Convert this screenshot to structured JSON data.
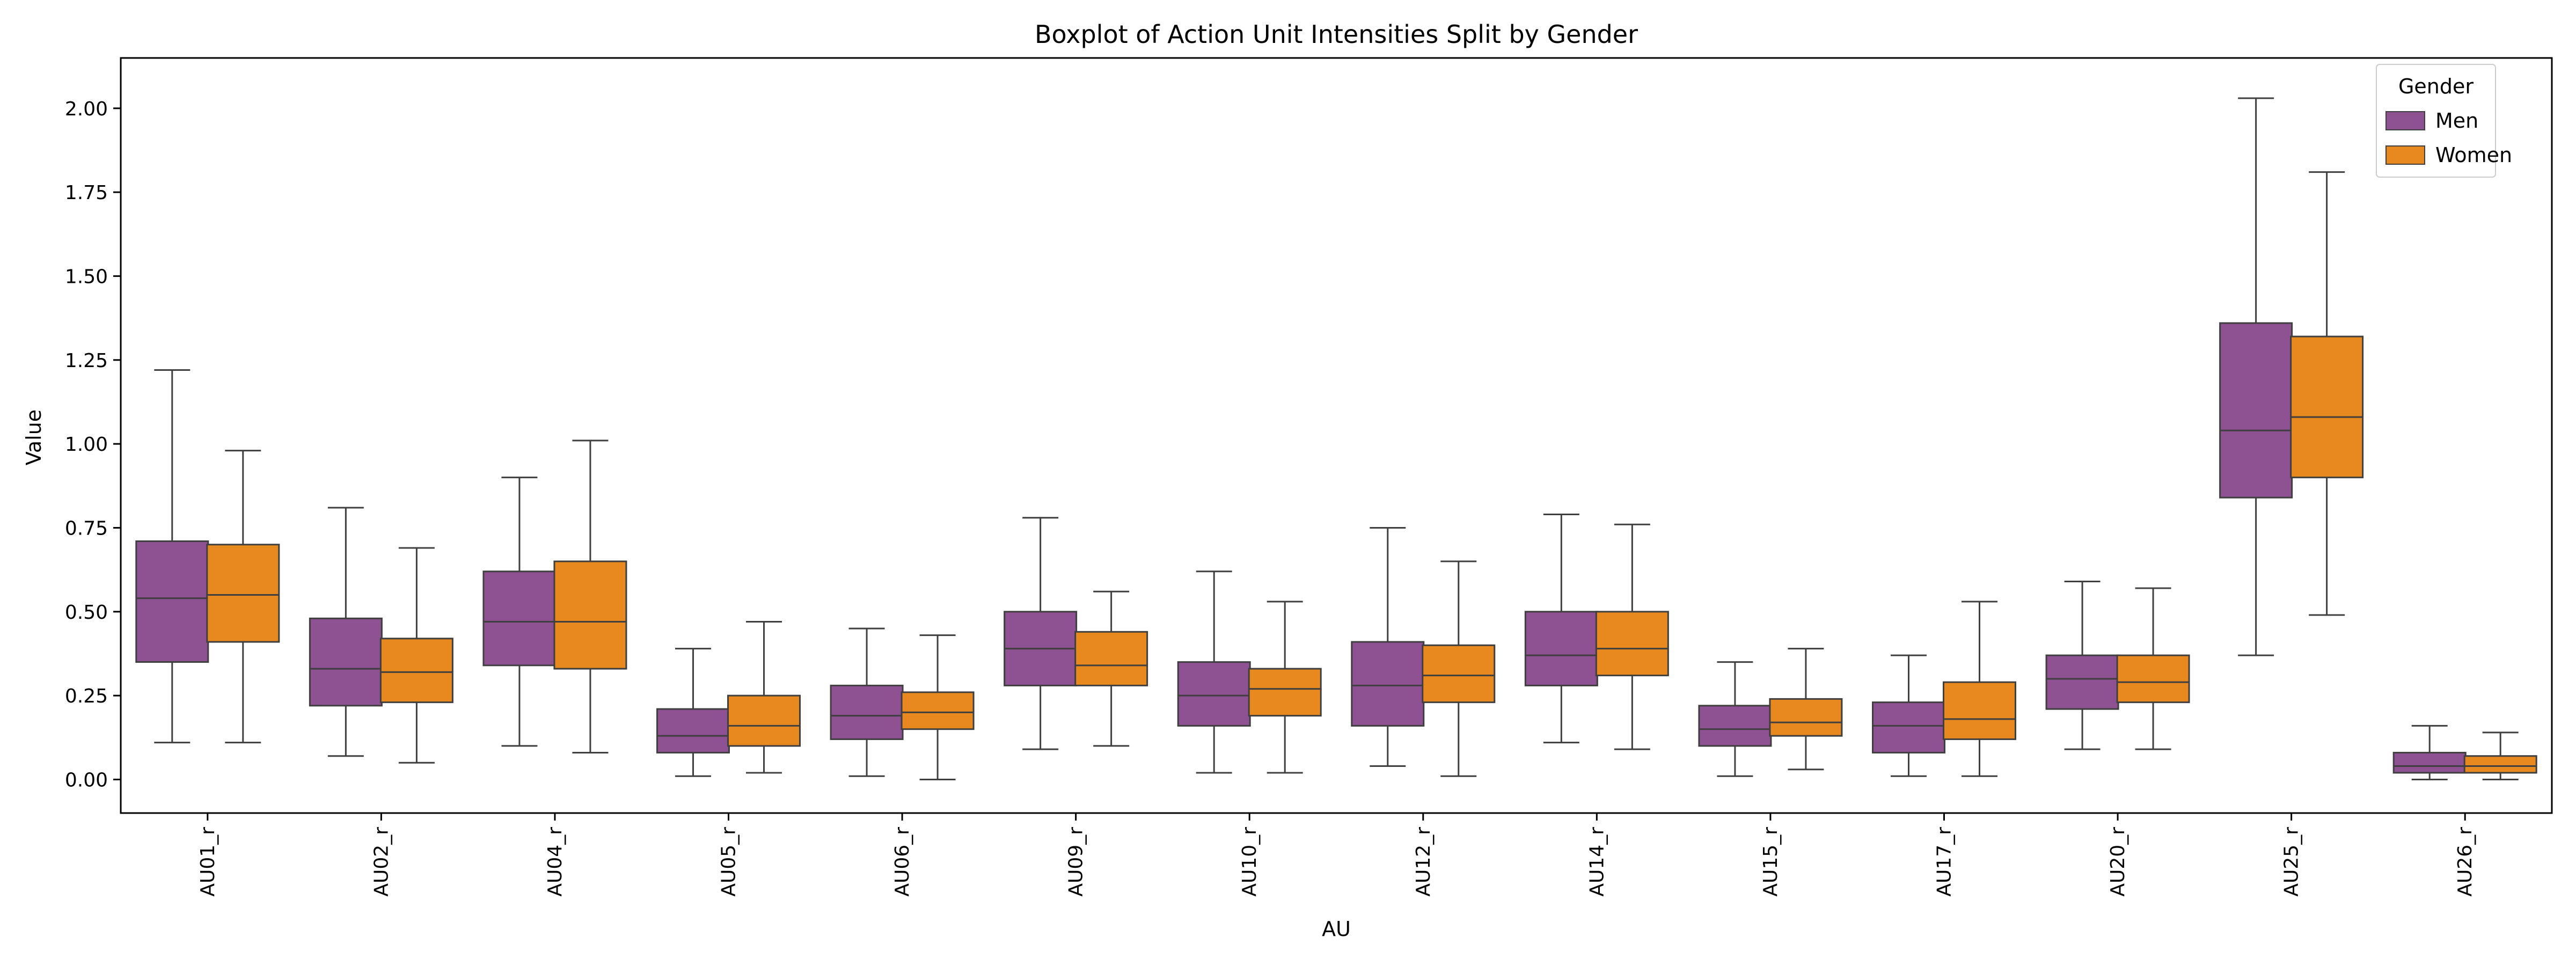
{
  "chart_data": {
    "type": "boxplot",
    "title": "Boxplot of Action Unit Intensities Split by Gender",
    "xlabel": "AU",
    "ylabel": "Value",
    "ylim": [
      -0.1,
      2.15
    ],
    "yticks": [
      0.0,
      0.25,
      0.5,
      0.75,
      1.0,
      1.25,
      1.5,
      1.75,
      2.0
    ],
    "ytick_labels": [
      "0.00",
      "0.25",
      "0.50",
      "0.75",
      "1.00",
      "1.25",
      "1.50",
      "1.75",
      "2.00"
    ],
    "grid": false,
    "legend": {
      "title": "Gender",
      "placement": "top-right"
    },
    "categories": [
      "AU01_r",
      "AU02_r",
      "AU04_r",
      "AU05_r",
      "AU06_r",
      "AU09_r",
      "AU10_r",
      "AU12_r",
      "AU14_r",
      "AU15_r",
      "AU17_r",
      "AU20_r",
      "AU25_r",
      "AU26_r"
    ],
    "series": [
      {
        "name": "Men",
        "color": "#8e5191",
        "boxes": [
          {
            "whislo": 0.11,
            "q1": 0.35,
            "med": 0.54,
            "q3": 0.71,
            "whishi": 1.22
          },
          {
            "whislo": 0.07,
            "q1": 0.22,
            "med": 0.33,
            "q3": 0.48,
            "whishi": 0.81
          },
          {
            "whislo": 0.1,
            "q1": 0.34,
            "med": 0.47,
            "q3": 0.62,
            "whishi": 0.9
          },
          {
            "whislo": 0.01,
            "q1": 0.08,
            "med": 0.13,
            "q3": 0.21,
            "whishi": 0.39
          },
          {
            "whislo": 0.01,
            "q1": 0.12,
            "med": 0.19,
            "q3": 0.28,
            "whishi": 0.45
          },
          {
            "whislo": 0.09,
            "q1": 0.28,
            "med": 0.39,
            "q3": 0.5,
            "whishi": 0.78
          },
          {
            "whislo": 0.02,
            "q1": 0.16,
            "med": 0.25,
            "q3": 0.35,
            "whishi": 0.62
          },
          {
            "whislo": 0.04,
            "q1": 0.16,
            "med": 0.28,
            "q3": 0.41,
            "whishi": 0.75
          },
          {
            "whislo": 0.11,
            "q1": 0.28,
            "med": 0.37,
            "q3": 0.5,
            "whishi": 0.79
          },
          {
            "whislo": 0.01,
            "q1": 0.1,
            "med": 0.15,
            "q3": 0.22,
            "whishi": 0.35
          },
          {
            "whislo": 0.01,
            "q1": 0.08,
            "med": 0.16,
            "q3": 0.23,
            "whishi": 0.37
          },
          {
            "whislo": 0.09,
            "q1": 0.21,
            "med": 0.3,
            "q3": 0.37,
            "whishi": 0.59
          },
          {
            "whislo": 0.37,
            "q1": 0.84,
            "med": 1.04,
            "q3": 1.36,
            "whishi": 2.03
          },
          {
            "whislo": 0.0,
            "q1": 0.02,
            "med": 0.04,
            "q3": 0.08,
            "whishi": 0.16
          }
        ]
      },
      {
        "name": "Women",
        "color": "#e8891f",
        "boxes": [
          {
            "whislo": 0.11,
            "q1": 0.41,
            "med": 0.55,
            "q3": 0.7,
            "whishi": 0.98
          },
          {
            "whislo": 0.05,
            "q1": 0.23,
            "med": 0.32,
            "q3": 0.42,
            "whishi": 0.69
          },
          {
            "whislo": 0.08,
            "q1": 0.33,
            "med": 0.47,
            "q3": 0.65,
            "whishi": 1.01
          },
          {
            "whislo": 0.02,
            "q1": 0.1,
            "med": 0.16,
            "q3": 0.25,
            "whishi": 0.47
          },
          {
            "whislo": 0.0,
            "q1": 0.15,
            "med": 0.2,
            "q3": 0.26,
            "whishi": 0.43
          },
          {
            "whislo": 0.1,
            "q1": 0.28,
            "med": 0.34,
            "q3": 0.44,
            "whishi": 0.56
          },
          {
            "whislo": 0.02,
            "q1": 0.19,
            "med": 0.27,
            "q3": 0.33,
            "whishi": 0.53
          },
          {
            "whislo": 0.01,
            "q1": 0.23,
            "med": 0.31,
            "q3": 0.4,
            "whishi": 0.65
          },
          {
            "whislo": 0.09,
            "q1": 0.31,
            "med": 0.39,
            "q3": 0.5,
            "whishi": 0.76
          },
          {
            "whislo": 0.03,
            "q1": 0.13,
            "med": 0.17,
            "q3": 0.24,
            "whishi": 0.39
          },
          {
            "whislo": 0.01,
            "q1": 0.12,
            "med": 0.18,
            "q3": 0.29,
            "whishi": 0.53
          },
          {
            "whislo": 0.09,
            "q1": 0.23,
            "med": 0.29,
            "q3": 0.37,
            "whishi": 0.57
          },
          {
            "whislo": 0.49,
            "q1": 0.9,
            "med": 1.08,
            "q3": 1.32,
            "whishi": 1.81
          },
          {
            "whislo": 0.0,
            "q1": 0.02,
            "med": 0.04,
            "q3": 0.07,
            "whishi": 0.14
          }
        ]
      }
    ]
  }
}
